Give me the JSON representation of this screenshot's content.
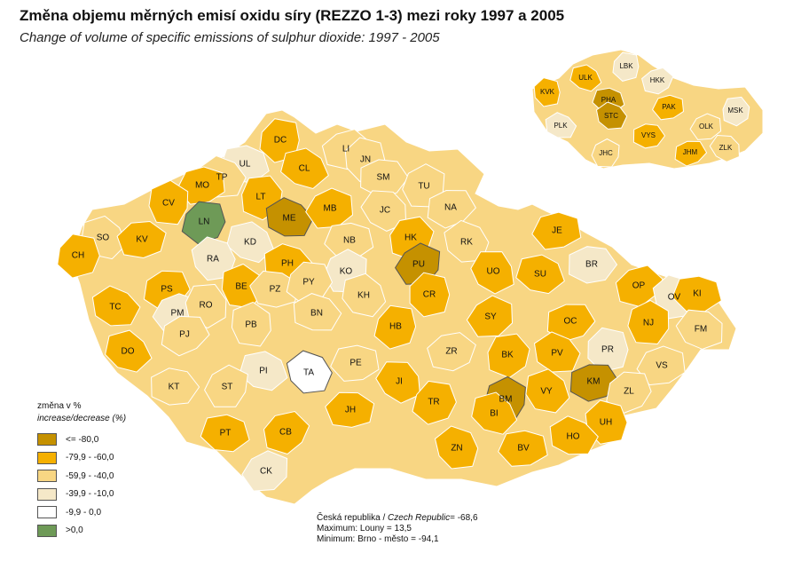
{
  "title": "Změna objemu měrných emisí oxidu síry (REZZO 1-3) mezi roky 1997 a 2005",
  "subtitle": "Change of volume of specific emissions of sulphur dioxide: 1997 - 2005",
  "legend": {
    "heading": "změna v %",
    "subheading": "increase/decrease (%)",
    "classes": [
      {
        "label": "<= -80,0",
        "color": "#c59100"
      },
      {
        "label": "-79,9 - -60,0",
        "color": "#f5b000"
      },
      {
        "label": "-59,9 - -40,0",
        "color": "#f8d683"
      },
      {
        "label": "-39,9 - -10,0",
        "color": "#f5e8c8"
      },
      {
        "label": "-9,9 - 0,0",
        "color": "#ffffff"
      },
      {
        "label": ">0,0",
        "color": "#6e9a57"
      }
    ]
  },
  "stats": {
    "country_prefix": "Česká republika / ",
    "country_en": "Czech Republic",
    "country_value": "= -68,6",
    "maximum": "Maximum: Louny = 13,5",
    "minimum": "Minimum: Brno - město = -94,1"
  },
  "districts": [
    {
      "code": "DC",
      "cls": 1
    },
    {
      "code": "CL",
      "cls": 1
    },
    {
      "code": "LI",
      "cls": 2
    },
    {
      "code": "JN",
      "cls": 2
    },
    {
      "code": "UL",
      "cls": 3
    },
    {
      "code": "TP",
      "cls": 2
    },
    {
      "code": "MO",
      "cls": 1
    },
    {
      "code": "LT",
      "cls": 1
    },
    {
      "code": "ME",
      "cls": 0
    },
    {
      "code": "MB",
      "cls": 1
    },
    {
      "code": "SM",
      "cls": 2
    },
    {
      "code": "TU",
      "cls": 2
    },
    {
      "code": "JC",
      "cls": 2
    },
    {
      "code": "NA",
      "cls": 2
    },
    {
      "code": "CV",
      "cls": 1
    },
    {
      "code": "LN",
      "cls": 5
    },
    {
      "code": "SO",
      "cls": 2
    },
    {
      "code": "KV",
      "cls": 1
    },
    {
      "code": "CH",
      "cls": 1
    },
    {
      "code": "KD",
      "cls": 3
    },
    {
      "code": "RA",
      "cls": 3
    },
    {
      "code": "NB",
      "cls": 2
    },
    {
      "code": "HK",
      "cls": 1
    },
    {
      "code": "RK",
      "cls": 2
    },
    {
      "code": "JE",
      "cls": 1
    },
    {
      "code": "PH",
      "cls": 1
    },
    {
      "code": "PU",
      "cls": 0
    },
    {
      "code": "UO",
      "cls": 1
    },
    {
      "code": "BR",
      "cls": 3
    },
    {
      "code": "KO",
      "cls": 3
    },
    {
      "code": "PS",
      "cls": 1
    },
    {
      "code": "BE",
      "cls": 1
    },
    {
      "code": "PZ",
      "cls": 2
    },
    {
      "code": "PY",
      "cls": 2
    },
    {
      "code": "KH",
      "cls": 2
    },
    {
      "code": "CR",
      "cls": 1
    },
    {
      "code": "SU",
      "cls": 1
    },
    {
      "code": "OP",
      "cls": 1
    },
    {
      "code": "OV",
      "cls": 3
    },
    {
      "code": "KI",
      "cls": 1
    },
    {
      "code": "TC",
      "cls": 1
    },
    {
      "code": "PM",
      "cls": 3
    },
    {
      "code": "RO",
      "cls": 2
    },
    {
      "code": "BN",
      "cls": 2
    },
    {
      "code": "SY",
      "cls": 1
    },
    {
      "code": "OC",
      "cls": 1
    },
    {
      "code": "NJ",
      "cls": 1
    },
    {
      "code": "FM",
      "cls": 2
    },
    {
      "code": "PJ",
      "cls": 2
    },
    {
      "code": "PB",
      "cls": 2
    },
    {
      "code": "HB",
      "cls": 1
    },
    {
      "code": "DO",
      "cls": 1
    },
    {
      "code": "ZR",
      "cls": 2
    },
    {
      "code": "PR",
      "cls": 3
    },
    {
      "code": "PI",
      "cls": 3
    },
    {
      "code": "TA",
      "cls": 4
    },
    {
      "code": "PE",
      "cls": 2
    },
    {
      "code": "BK",
      "cls": 1
    },
    {
      "code": "PV",
      "cls": 1
    },
    {
      "code": "VS",
      "cls": 2
    },
    {
      "code": "KT",
      "cls": 2
    },
    {
      "code": "ST",
      "cls": 2
    },
    {
      "code": "JI",
      "cls": 1
    },
    {
      "code": "KM",
      "cls": 0
    },
    {
      "code": "BM",
      "cls": 0
    },
    {
      "code": "ZL",
      "cls": 2
    },
    {
      "code": "VY",
      "cls": 1
    },
    {
      "code": "JH",
      "cls": 1
    },
    {
      "code": "TR",
      "cls": 1
    },
    {
      "code": "BI",
      "cls": 1
    },
    {
      "code": "UH",
      "cls": 1
    },
    {
      "code": "PT",
      "cls": 1
    },
    {
      "code": "CB",
      "cls": 1
    },
    {
      "code": "ZN",
      "cls": 1
    },
    {
      "code": "BV",
      "cls": 1
    },
    {
      "code": "HO",
      "cls": 1
    },
    {
      "code": "CK",
      "cls": 3
    }
  ],
  "regions": [
    {
      "code": "LBK",
      "cls": 3
    },
    {
      "code": "ULK",
      "cls": 1
    },
    {
      "code": "HKK",
      "cls": 3
    },
    {
      "code": "KVK",
      "cls": 1
    },
    {
      "code": "PHA",
      "cls": 0
    },
    {
      "code": "STC",
      "cls": 0
    },
    {
      "code": "PAK",
      "cls": 1
    },
    {
      "code": "MSK",
      "cls": 3
    },
    {
      "code": "PLK",
      "cls": 3
    },
    {
      "code": "OLK",
      "cls": 2
    },
    {
      "code": "VYS",
      "cls": 1
    },
    {
      "code": "JHC",
      "cls": 2
    },
    {
      "code": "ZLK",
      "cls": 2
    },
    {
      "code": "JHM",
      "cls": 1
    }
  ]
}
